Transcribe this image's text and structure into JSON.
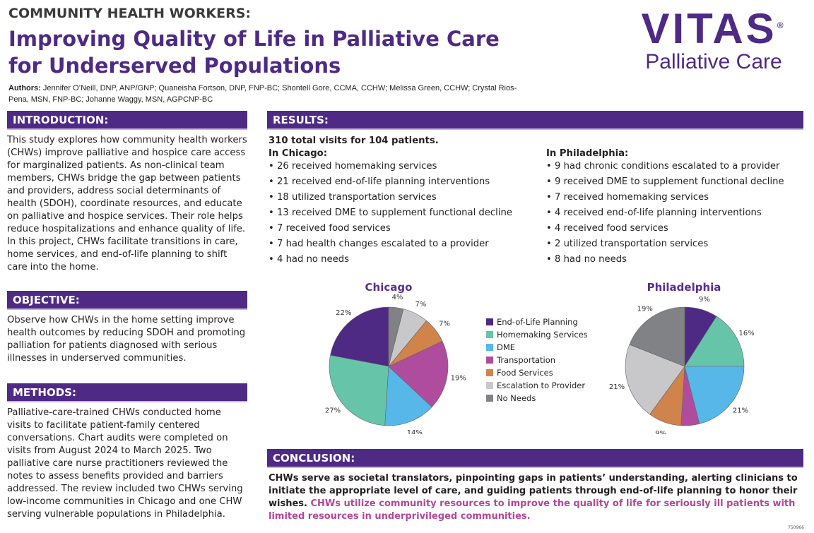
{
  "header": {
    "kicker": "COMMUNITY HEALTH WORKERS:",
    "title": "Improving Quality of Life in Palliative Care for Underserved Populations",
    "authors_label": "Authors:",
    "authors": " Jennifer O’Neill, DNP, ANP/GNP; Quaneisha Fortson, DNP, FNP-BC; Shontell Gore, CCMA, CCHW; Melissa Green, CCHW; Crystal Rios-Pena, MSN, FNP-BC; Johanne Waggy, MSN, AGPCNP-BC"
  },
  "logo": {
    "brand": "VITAS",
    "registered": "®",
    "sub": "Palliative Care"
  },
  "introduction": {
    "heading": "INTRODUCTION:",
    "text": "This study explores how community health workers (CHWs) improve palliative and hospice care access for marginalized patients. As non-clinical team members, CHWs bridge the gap between patients and providers, address social determinants of health (SDOH), coordinate resources, and educate on palliative and hospice services. Their role helps reduce hospitalizations and enhance quality of life. In this project, CHWs facilitate transitions in care, home services, and end-of-life planning to shift care into the home."
  },
  "objective": {
    "heading": "OBJECTIVE:",
    "text": "Observe how CHWs in the home setting improve health outcomes by reducing SDOH and promoting palliation for patients diagnosed with serious illnesses in underserved communities."
  },
  "methods": {
    "heading": "METHODS:",
    "text": "Palliative-care-trained CHWs conducted home visits to facilitate patient-family centered conversations. Chart audits were completed on visits from August 2024 to March 2025. Two palliative care nurse practitioners reviewed the notes to assess benefits provided and barriers addressed. The review included two CHWs serving low-income communities in Chicago and one CHW serving vulnerable populations in Philadelphia."
  },
  "results": {
    "heading": "RESULTS:",
    "summary": "310 total visits for 104 patients.",
    "chicago": {
      "label": "In Chicago:",
      "items": [
        "26 received homemaking services",
        "21 received end-of-life planning interventions",
        "18 utilized transportation services",
        "13 received DME to supplement functional decline",
        "7 received food services",
        "7 had health changes escalated to a provider",
        "4 had no needs"
      ]
    },
    "philadelphia": {
      "label": "In Philadelphia:",
      "items": [
        "9 had chronic conditions escalated to a provider",
        "9 received DME to supplement functional decline",
        "7 received homemaking services",
        "4 received end-of-life planning interventions",
        "4 received food services",
        "2 utilized transportation services",
        "8 had no needs"
      ]
    }
  },
  "legend": [
    "End-of-Life Planning",
    "Homemaking Services",
    "DME",
    "Transportation",
    "Food Services",
    "Escalation to Provider",
    "No Needs"
  ],
  "colors": [
    "#4e2a84",
    "#66c5a9",
    "#56b7e8",
    "#b04c9e",
    "#d0834a",
    "#c8c8ca",
    "#808285"
  ],
  "chart_data": [
    {
      "type": "pie",
      "title": "Chicago",
      "categories": [
        "End-of-Life Planning",
        "Homemaking Services",
        "DME",
        "Transportation",
        "Food Services",
        "Escalation to Provider",
        "No Needs"
      ],
      "values": [
        22,
        27,
        14,
        19,
        7,
        7,
        4
      ],
      "unit": "%",
      "direction": "counterclockwise",
      "legend": "right"
    },
    {
      "type": "pie",
      "title": "Philadelphia",
      "categories": [
        "End-of-Life Planning",
        "Homemaking Services",
        "DME",
        "Transportation",
        "Food Services",
        "Escalation to Provider",
        "No Needs"
      ],
      "values": [
        9,
        16,
        21,
        5,
        9,
        21,
        19
      ],
      "unit": "%",
      "direction": "clockwise"
    }
  ],
  "conclusion": {
    "heading": "CONCLUSION:",
    "text": "CHWs serve as societal translators, pinpointing gaps in patients’ understanding, alerting clinicians to initiate the appropriate level of care, and guiding patients through end-of-life planning to honor their wishes. ",
    "highlight": "CHWs utilize community resources to improve the quality of life for seriously ill patients with limited resources in underprivileged communities."
  },
  "footer": {
    "code": "750966"
  }
}
